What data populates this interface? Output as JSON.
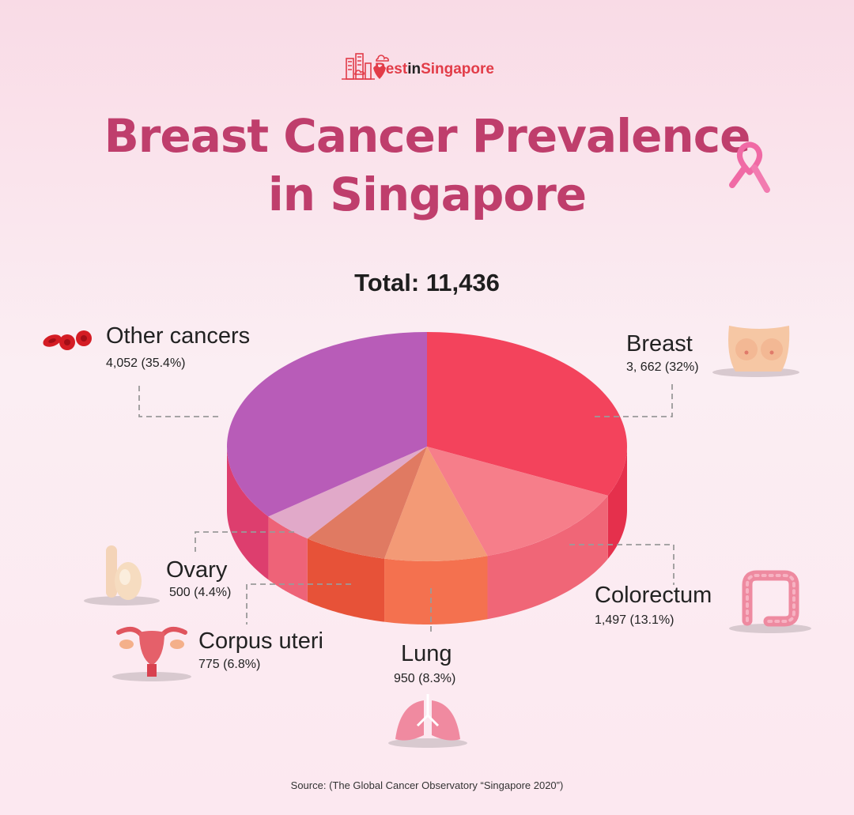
{
  "brand": {
    "part1": "Best",
    "part2": "in",
    "part3": "Singapore"
  },
  "title_line1": "Breast Cancer Prevalence",
  "title_line2": "in Singapore",
  "total_label": "Total: 11,436",
  "source": "Source: (The Global Cancer Observatory “Singapore 2020”)",
  "colors": {
    "title": "#bf3e6c",
    "breast": "#f3435c",
    "colorectum": "#f67e8a",
    "lung": "#f39a76",
    "corpus_uteri": "#e07a62",
    "ovary": "#e1a9c9",
    "other": "#b85cb8"
  },
  "chart_data": {
    "type": "pie",
    "title": "Breast Cancer Prevalence in Singapore",
    "total": 11436,
    "slices": [
      {
        "label": "Breast",
        "value": 3662,
        "percent": 32,
        "value_text": "3, 662 (32%)",
        "color": "#f3435c",
        "side_color": "#e5304c"
      },
      {
        "label": "Colorectum",
        "value": 1497,
        "percent": 13.1,
        "value_text": "1,497 (13.1%)",
        "color": "#f67e8a",
        "side_color": "#f06677"
      },
      {
        "label": "Lung",
        "value": 950,
        "percent": 8.3,
        "value_text": "950 (8.3%)",
        "color": "#f39a76",
        "side_color": "#f4714f"
      },
      {
        "label": "Corpus uteri",
        "value": 775,
        "percent": 6.8,
        "value_text": "775 (6.8%)",
        "color": "#e07a62",
        "side_color": "#e75238"
      },
      {
        "label": "Ovary",
        "value": 500,
        "percent": 4.4,
        "value_text": "500 (4.4%)",
        "color": "#e1a9c9",
        "side_color": "#ee6378"
      },
      {
        "label": "Other cancers",
        "value": 4052,
        "percent": 35.4,
        "value_text": "4,052 (35.4%)",
        "color": "#b85cb8",
        "side_color": "#dd3e6e"
      }
    ]
  }
}
